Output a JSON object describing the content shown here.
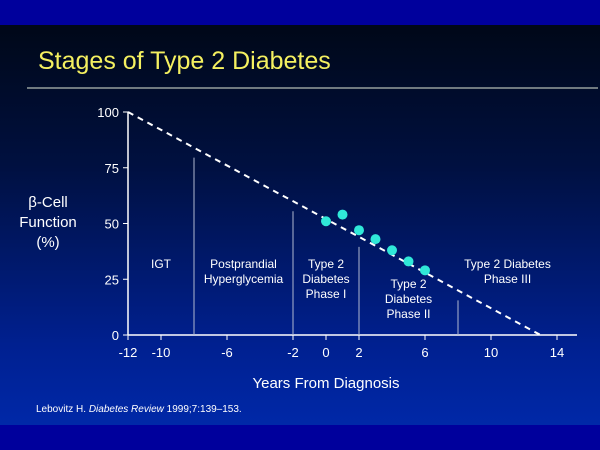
{
  "title": "Stages of Type 2 Diabetes",
  "citation": {
    "author": "Lebovitz H. ",
    "journal": "Diabetes Review",
    "details": " 1999;7:139–153."
  },
  "chart_data": {
    "type": "line",
    "title": "Stages of Type 2 Diabetes",
    "xlabel": "Years From Diagnosis",
    "ylabel": [
      "β-Cell",
      "Function",
      "(%)"
    ],
    "xlim": [
      -12,
      14
    ],
    "ylim": [
      0,
      100
    ],
    "xticks": [
      -12,
      -10,
      -6,
      -2,
      0,
      2,
      6,
      10,
      14
    ],
    "yticks": [
      0,
      25,
      50,
      75,
      100
    ],
    "trend_line": {
      "x": [
        -12,
        13
      ],
      "y": [
        100,
        0
      ],
      "style": "dashed"
    },
    "points": {
      "x": [
        0,
        1,
        2,
        3,
        4,
        5,
        6
      ],
      "y": [
        51,
        54,
        47,
        43,
        38,
        33,
        29
      ]
    },
    "stage_boundaries": [
      -8,
      -2,
      2,
      8
    ],
    "stages": [
      {
        "label": [
          "IGT"
        ],
        "x": -10,
        "y": 30
      },
      {
        "label": [
          "Postprandial",
          "Hyperglycemia"
        ],
        "x": -5,
        "y": 30
      },
      {
        "label": [
          "Type 2",
          "Diabetes",
          "Phase I"
        ],
        "x": 0,
        "y": 30
      },
      {
        "label": [
          "Type 2",
          "Diabetes",
          "Phase II"
        ],
        "x": 5,
        "y": 21
      },
      {
        "label": [
          "Type 2 Diabetes",
          "Phase III"
        ],
        "x": 11,
        "y": 30
      }
    ],
    "colors": {
      "points": "#30e8d8",
      "title": "#f4f060"
    }
  }
}
